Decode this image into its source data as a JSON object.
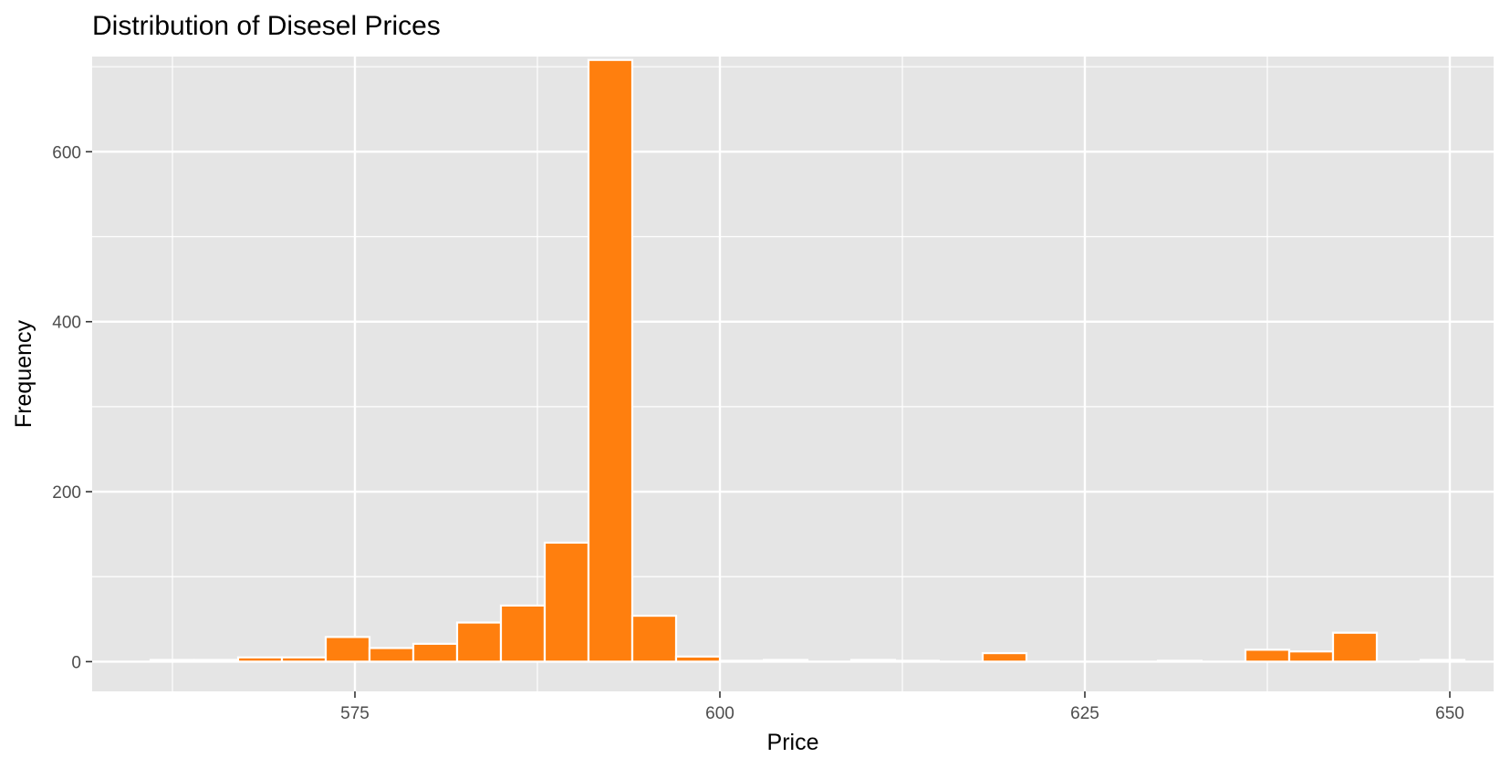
{
  "chart_data": {
    "type": "histogram",
    "title": "Distribution of Disesel Prices",
    "xlabel": "Price",
    "ylabel": "Frequency",
    "xlim": [
      557,
      653
    ],
    "ylim": [
      -35,
      712
    ],
    "x_ticks": [
      575,
      600,
      625,
      650
    ],
    "x_minor_ticks": [
      562.5,
      587.5,
      612.5,
      637.5
    ],
    "y_ticks": [
      0,
      200,
      400,
      600
    ],
    "y_minor_ticks": [
      100,
      300,
      500,
      700
    ],
    "bin_width": 3,
    "bar_color": "#FF7F0E",
    "panel_color": "#E5E5E5",
    "grid": true,
    "bins": [
      {
        "start": 561,
        "end": 564,
        "count": 2
      },
      {
        "start": 564,
        "end": 567,
        "count": 2
      },
      {
        "start": 567,
        "end": 570,
        "count": 5
      },
      {
        "start": 570,
        "end": 573,
        "count": 5
      },
      {
        "start": 573,
        "end": 576,
        "count": 29
      },
      {
        "start": 576,
        "end": 579,
        "count": 16
      },
      {
        "start": 579,
        "end": 582,
        "count": 21
      },
      {
        "start": 582,
        "end": 585,
        "count": 46
      },
      {
        "start": 585,
        "end": 588,
        "count": 66
      },
      {
        "start": 588,
        "end": 591,
        "count": 140
      },
      {
        "start": 591,
        "end": 594,
        "count": 708
      },
      {
        "start": 594,
        "end": 597,
        "count": 54
      },
      {
        "start": 597,
        "end": 600,
        "count": 6
      },
      {
        "start": 600,
        "end": 603,
        "count": 1
      },
      {
        "start": 603,
        "end": 606,
        "count": 2
      },
      {
        "start": 606,
        "end": 609,
        "count": 0
      },
      {
        "start": 609,
        "end": 612,
        "count": 2
      },
      {
        "start": 612,
        "end": 615,
        "count": 1
      },
      {
        "start": 615,
        "end": 618,
        "count": 0
      },
      {
        "start": 618,
        "end": 621,
        "count": 10
      },
      {
        "start": 621,
        "end": 624,
        "count": 0
      },
      {
        "start": 624,
        "end": 627,
        "count": 0
      },
      {
        "start": 627,
        "end": 630,
        "count": 0
      },
      {
        "start": 630,
        "end": 633,
        "count": 1
      },
      {
        "start": 633,
        "end": 636,
        "count": 0
      },
      {
        "start": 636,
        "end": 639,
        "count": 14
      },
      {
        "start": 639,
        "end": 642,
        "count": 12
      },
      {
        "start": 642,
        "end": 645,
        "count": 34
      },
      {
        "start": 645,
        "end": 648,
        "count": 0
      },
      {
        "start": 648,
        "end": 651,
        "count": 2
      }
    ]
  }
}
